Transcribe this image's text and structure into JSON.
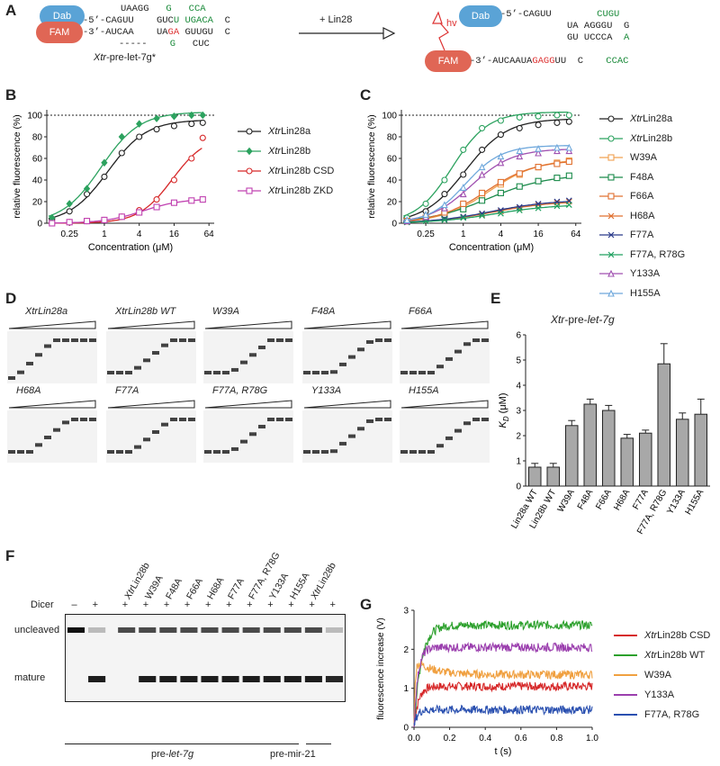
{
  "panelA": {
    "letter": "A",
    "left": {
      "dab": "Dab",
      "fam": "FAM",
      "row1": "UAAGG   G   CCA",
      "row2_pre": "-5’-CAGUU",
      "row2_mid": "GUCU UGACA",
      "row2_end": "C",
      "row3_pre": "-3’-AUCAA",
      "row3_mid": "UAGA GUUGU",
      "row3_end": "C",
      "row4": "-----    G   CUC",
      "name_prefix": "Xtr",
      "name_suffix": "-pre-let-7g*"
    },
    "arrow_label": "+ Lin28",
    "right": {
      "dab": "Dab",
      "fam": "FAM",
      "hv": "hv",
      "row1_pre": "-5’-CAGUU",
      "row1_end": "CUGU",
      "row2": "UA AGGGU  G",
      "row3": "GU UCCCA  A",
      "row4_pre": "-3’-AUCAAUAGAGGUU",
      "row4_mid": "C",
      "row4_end": "CCAC"
    }
  },
  "panelB": {
    "letter": "B"
  },
  "panelC": {
    "letter": "C"
  },
  "panelD": {
    "letter": "D",
    "gels": [
      {
        "label_i": "Xtr",
        "label": "Lin28a"
      },
      {
        "label_i": "Xtr",
        "label": "Lin28b WT"
      },
      {
        "label_i": "",
        "label": "W39A"
      },
      {
        "label_i": "",
        "label": "F48A"
      },
      {
        "label_i": "",
        "label": "F66A"
      },
      {
        "label_i": "",
        "label": "H68A"
      },
      {
        "label_i": "",
        "label": "F77A"
      },
      {
        "label_i": "",
        "label": "F77A, R78G"
      },
      {
        "label_i": "",
        "label": "Y133A"
      },
      {
        "label_i": "",
        "label": "H155A"
      }
    ]
  },
  "panelE": {
    "letter": "E"
  },
  "panelF": {
    "letter": "F",
    "dicer_label": "Dicer",
    "dicer_marks": [
      "–",
      "+",
      "+",
      "+",
      "+",
      "+",
      "+",
      "+",
      "+",
      "+",
      "+",
      "+",
      "+"
    ],
    "lane_labels": [
      "XtrLin28b",
      "W39A",
      "F48A",
      "F66A",
      "H68A",
      "F77A",
      "F77A, R78G",
      "Y133A",
      "H155A",
      "XtrLin28b"
    ],
    "uncleaved": "uncleaved",
    "mature": "mature",
    "pre_let7g": "pre-let-7g",
    "pre_mir21": "pre-mir-21"
  },
  "panelG": {
    "letter": "G"
  },
  "chart_data": [
    {
      "type": "line",
      "panel": "B",
      "xlabel": "Concentration (μM)",
      "ylabel": "relative fluorescence (%)",
      "xscale": "log2",
      "xticks": [
        "0.25",
        "1",
        "4",
        "16",
        "64"
      ],
      "yticks": [
        0,
        20,
        40,
        60,
        80,
        100
      ],
      "ylim": [
        0,
        105
      ],
      "reference_line": 100,
      "x": [
        0.125,
        0.25,
        0.5,
        1,
        2,
        4,
        8,
        16,
        32,
        50
      ],
      "series": [
        {
          "name": "XtrLin28a",
          "color": "#222222",
          "marker": "circle",
          "values": [
            4,
            11,
            27,
            43,
            65,
            80,
            87,
            90,
            92,
            93
          ]
        },
        {
          "name": "XtrLin28b",
          "color": "#2ca25f",
          "marker": "diamond",
          "values": [
            5,
            18,
            32,
            56,
            80,
            92,
            97,
            99,
            100,
            100
          ]
        },
        {
          "name": "XtrLin28b CSD",
          "color": "#d62728",
          "marker": "circle",
          "values": [
            0,
            1,
            2,
            3,
            6,
            12,
            22,
            40,
            60,
            79
          ]
        },
        {
          "name": "XtrLin28b ZKD",
          "color": "#c040b0",
          "marker": "square",
          "values": [
            0,
            1,
            2,
            3,
            6,
            10,
            15,
            19,
            21,
            22
          ]
        }
      ]
    },
    {
      "type": "line",
      "panel": "C",
      "xlabel": "Concentration (μM)",
      "ylabel": "relative fluorescence (%)",
      "xscale": "log2",
      "xticks": [
        "0.25",
        "1",
        "4",
        "16",
        "64"
      ],
      "yticks": [
        0,
        20,
        40,
        60,
        80,
        100
      ],
      "ylim": [
        0,
        105
      ],
      "reference_line": 100,
      "x": [
        0.125,
        0.25,
        0.5,
        1,
        2,
        4,
        8,
        16,
        32,
        50
      ],
      "series": [
        {
          "name": "XtrLin28a",
          "color": "#222222",
          "marker": "circle",
          "values": [
            4,
            11,
            27,
            45,
            68,
            82,
            88,
            91,
            93,
            94
          ]
        },
        {
          "name": "XtrLin28b",
          "color": "#2ca25f",
          "marker": "circle",
          "values": [
            5,
            18,
            40,
            68,
            88,
            95,
            98,
            99,
            100,
            100
          ]
        },
        {
          "name": "W39A",
          "color": "#f0a050",
          "marker": "square",
          "values": [
            2,
            5,
            10,
            17,
            26,
            36,
            45,
            52,
            56,
            58
          ]
        },
        {
          "name": "F48A",
          "color": "#1a8a4a",
          "marker": "square",
          "values": [
            2,
            4,
            8,
            13,
            21,
            28,
            34,
            39,
            42,
            44
          ]
        },
        {
          "name": "F66A",
          "color": "#e07030",
          "marker": "square",
          "values": [
            2,
            5,
            10,
            18,
            28,
            38,
            46,
            52,
            55,
            57
          ]
        },
        {
          "name": "H68A",
          "color": "#e07030",
          "marker": "x",
          "values": [
            1,
            2,
            4,
            6,
            8,
            11,
            14,
            17,
            19,
            20
          ]
        },
        {
          "name": "F77A",
          "color": "#2a3a8a",
          "marker": "x",
          "values": [
            1,
            2,
            4,
            6,
            9,
            12,
            15,
            18,
            20,
            21
          ]
        },
        {
          "name": "F77A, R78G",
          "color": "#20a060",
          "marker": "x",
          "values": [
            1,
            2,
            3,
            5,
            7,
            9,
            12,
            14,
            16,
            17
          ]
        },
        {
          "name": "Y133A",
          "color": "#a050b0",
          "marker": "triangle",
          "values": [
            2,
            6,
            14,
            27,
            45,
            56,
            62,
            65,
            67,
            67
          ]
        },
        {
          "name": "H155A",
          "color": "#6fa8dc",
          "marker": "triangle",
          "values": [
            3,
            8,
            17,
            33,
            52,
            62,
            67,
            69,
            70,
            70
          ]
        }
      ]
    },
    {
      "type": "bar",
      "panel": "E",
      "title_prefix": "Xtr",
      "title_mid": "-pre-",
      "title_suffix": "let-7g",
      "ylabel": "K_D (μM)",
      "yticks": [
        0,
        1,
        2,
        3,
        4,
        5,
        6
      ],
      "ylim": [
        0,
        6
      ],
      "categories": [
        "Lin28a WT",
        "Lin28b WT",
        "W39A",
        "F48A",
        "F66A",
        "H68A",
        "F77A",
        "F77A, R78G",
        "Y133A",
        "H155A"
      ],
      "values": [
        0.75,
        0.75,
        2.4,
        3.25,
        3.0,
        1.9,
        2.1,
        4.85,
        2.65,
        2.85
      ],
      "errors": [
        0.15,
        0.15,
        0.2,
        0.2,
        0.2,
        0.15,
        0.12,
        0.8,
        0.25,
        0.6
      ]
    },
    {
      "type": "line",
      "panel": "G",
      "xlabel": "t (s)",
      "ylabel": "fluorescence increase (V)",
      "xticks": [
        0.0,
        0.2,
        0.4,
        0.6,
        0.8,
        1.0
      ],
      "yticks": [
        0,
        1,
        2,
        3
      ],
      "xlim": [
        0,
        1
      ],
      "ylim": [
        0,
        3
      ],
      "series": [
        {
          "name": "XtrLin28b CSD",
          "color": "#d62728",
          "plateau": 1.05,
          "peak": 1.05,
          "rate": 40
        },
        {
          "name": "XtrLin28b WT",
          "color": "#2ca02c",
          "plateau": 2.62,
          "peak": 2.62,
          "rate": 25
        },
        {
          "name": "W39A",
          "color": "#f0a040",
          "plateau": 1.35,
          "peak": 1.75,
          "rate": 60
        },
        {
          "name": "Y133A",
          "color": "#9b3fae",
          "plateau": 2.05,
          "peak": 2.05,
          "rate": 45
        },
        {
          "name": "F77A, R78G",
          "color": "#2a50b0",
          "plateau": 0.45,
          "peak": 0.45,
          "rate": 60
        }
      ]
    }
  ]
}
